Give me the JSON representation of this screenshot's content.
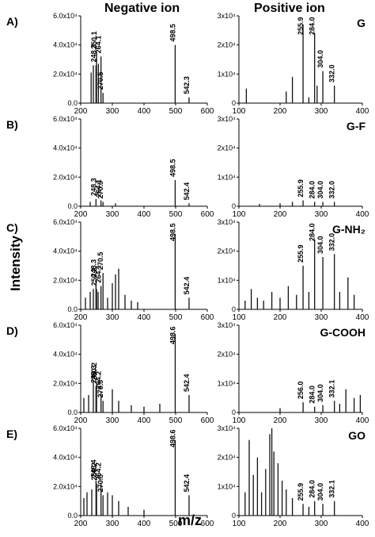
{
  "headers": {
    "negative": "Negative ion",
    "positive": "Positive ion"
  },
  "ylabel": "Intensity",
  "xlabel": "m/z",
  "chart_data": [
    {
      "panel": "A",
      "sample": "G",
      "side": "negative",
      "type": "bar",
      "xlim": [
        200,
        600
      ],
      "ylim": [
        0,
        60000
      ],
      "yticks": [
        "0.0",
        "2.0x10⁴",
        "4.0x10⁴",
        "6.0x10⁴"
      ],
      "xticks": [
        "200",
        "300",
        "400",
        "500",
        "600"
      ],
      "peaks": [
        [
          233,
          21000
        ],
        [
          240,
          26000
        ],
        [
          248.3,
          26000
        ],
        [
          250.1,
          35000
        ],
        [
          256,
          27000
        ],
        [
          264.1,
          32000
        ],
        [
          270.5,
          7000
        ],
        [
          498.5,
          40000
        ],
        [
          542.3,
          4000
        ]
      ],
      "annotations": [
        {
          "x": 248.3,
          "text": "248.3"
        },
        {
          "x": 250.1,
          "text": "250.1"
        },
        {
          "x": 264.1,
          "text": "264.1"
        },
        {
          "x": 270.5,
          "text": "270.5"
        },
        {
          "x": 498.5,
          "text": "498.5"
        },
        {
          "x": 542.3,
          "text": "542.3"
        }
      ]
    },
    {
      "panel": "A",
      "sample": "G",
      "side": "positive",
      "type": "bar",
      "xlim": [
        100,
        400
      ],
      "ylim": [
        0,
        30000
      ],
      "yticks": [
        "0",
        "1x10⁴",
        "2x10⁴",
        "3x10⁴"
      ],
      "xticks": [
        "100",
        "200",
        "300",
        "400"
      ],
      "peaks": [
        [
          118,
          5000
        ],
        [
          215,
          4000
        ],
        [
          230,
          9000
        ],
        [
          255.9,
          27000
        ],
        [
          270,
          2000
        ],
        [
          284,
          24000
        ],
        [
          290,
          6000
        ],
        [
          304,
          11000
        ],
        [
          332,
          6000
        ]
      ],
      "annotations": [
        {
          "x": 255.9,
          "text": "255.9"
        },
        {
          "x": 284.0,
          "text": "284.0"
        },
        {
          "x": 304.0,
          "text": "304.0"
        },
        {
          "x": 332.0,
          "text": "332.0"
        }
      ]
    },
    {
      "panel": "B",
      "sample": "G-F",
      "side": "negative",
      "type": "bar",
      "xlim": [
        200,
        600
      ],
      "ylim": [
        0,
        60000
      ],
      "yticks": [
        "0.0",
        "2.0x10⁴",
        "4.0x10⁴",
        "6.0x10⁴"
      ],
      "xticks": [
        "200",
        "300",
        "400",
        "500",
        "600"
      ],
      "peaks": [
        [
          230,
          3000
        ],
        [
          248.3,
          5000
        ],
        [
          264.1,
          4000
        ],
        [
          270.5,
          3000
        ],
        [
          310,
          2000
        ],
        [
          498.5,
          18000
        ],
        [
          542.4,
          2000
        ]
      ],
      "annotations": [
        {
          "x": 248.3,
          "text": "248.3"
        },
        {
          "x": 264.1,
          "text": "264.1"
        },
        {
          "x": 270.5,
          "text": "270.5"
        },
        {
          "x": 498.5,
          "text": "498.5"
        },
        {
          "x": 542.4,
          "text": "542.4"
        }
      ]
    },
    {
      "panel": "B",
      "sample": "G-F",
      "side": "positive",
      "type": "bar",
      "xlim": [
        100,
        400
      ],
      "ylim": [
        0,
        30000
      ],
      "yticks": [
        "0",
        "1x10⁴",
        "2x10⁴",
        "3x10⁴"
      ],
      "xticks": [
        "100",
        "200",
        "300",
        "400"
      ],
      "peaks": [
        [
          150,
          800
        ],
        [
          200,
          1000
        ],
        [
          230,
          1500
        ],
        [
          255.9,
          2000
        ],
        [
          284,
          1500
        ],
        [
          304,
          1500
        ],
        [
          332,
          1500
        ]
      ],
      "annotations": [
        {
          "x": 255.9,
          "text": "255.9"
        },
        {
          "x": 284.0,
          "text": "284.0"
        },
        {
          "x": 304.0,
          "text": "304.0"
        },
        {
          "x": 332.0,
          "text": "332.0"
        }
      ]
    },
    {
      "panel": "C",
      "sample": "G-NH₂",
      "side": "negative",
      "type": "bar",
      "xlim": [
        200,
        600
      ],
      "ylim": [
        0,
        60000
      ],
      "yticks": [
        "0.0",
        "2.0x10⁴",
        "4.0x10⁴",
        "6.0x10⁴"
      ],
      "xticks": [
        "200",
        "300",
        "400",
        "500",
        "600"
      ],
      "peaks": [
        [
          215,
          8000
        ],
        [
          230,
          12000
        ],
        [
          240,
          14000
        ],
        [
          248.3,
          20000
        ],
        [
          250.2,
          14000
        ],
        [
          255,
          12000
        ],
        [
          264.1,
          16000
        ],
        [
          270.5,
          25000
        ],
        [
          285,
          8000
        ],
        [
          300,
          18000
        ],
        [
          310,
          24000
        ],
        [
          320,
          28000
        ],
        [
          340,
          10000
        ],
        [
          360,
          6000
        ],
        [
          380,
          5000
        ],
        [
          498.5,
          52000
        ],
        [
          542.4,
          8000
        ]
      ],
      "annotations": [
        {
          "x": 250.2,
          "text": "250.2"
        },
        {
          "x": 248.3,
          "text": "248.3"
        },
        {
          "x": 264.1,
          "text": "264.1"
        },
        {
          "x": 270.5,
          "text": "270.5"
        },
        {
          "x": 498.5,
          "text": "498.5"
        },
        {
          "x": 542.4,
          "text": "542.4"
        }
      ]
    },
    {
      "panel": "C",
      "sample": "G-NH₂",
      "side": "positive",
      "type": "bar",
      "xlim": [
        100,
        400
      ],
      "ylim": [
        0,
        30000
      ],
      "yticks": [
        "0",
        "1x10⁴",
        "2x10⁴",
        "3x10⁴"
      ],
      "xticks": [
        "100",
        "200",
        "300",
        "400"
      ],
      "peaks": [
        [
          115,
          3000
        ],
        [
          130,
          7000
        ],
        [
          145,
          4000
        ],
        [
          160,
          3000
        ],
        [
          180,
          6000
        ],
        [
          200,
          4000
        ],
        [
          220,
          8000
        ],
        [
          240,
          5000
        ],
        [
          255.9,
          15000
        ],
        [
          270,
          6000
        ],
        [
          284,
          24000
        ],
        [
          304,
          18000
        ],
        [
          332,
          19000
        ],
        [
          345,
          6000
        ],
        [
          365,
          11000
        ],
        [
          380,
          5000
        ]
      ],
      "annotations": [
        {
          "x": 255.9,
          "text": "255.9"
        },
        {
          "x": 284.0,
          "text": "284.0"
        },
        {
          "x": 304.0,
          "text": "304.0"
        },
        {
          "x": 332.0,
          "text": "332.0"
        }
      ]
    },
    {
      "panel": "D",
      "sample": "G-COOH",
      "side": "negative",
      "type": "bar",
      "xlim": [
        200,
        600
      ],
      "ylim": [
        0,
        60000
      ],
      "yticks": [
        "0.0",
        "2.0x10⁴",
        "4.0x10⁴",
        "6.0x10⁴"
      ],
      "xticks": [
        "200",
        "300",
        "400",
        "500",
        "600"
      ],
      "peaks": [
        [
          210,
          10000
        ],
        [
          225,
          12000
        ],
        [
          240,
          22000
        ],
        [
          248.3,
          18000
        ],
        [
          250.2,
          20000
        ],
        [
          264.2,
          14000
        ],
        [
          270.5,
          8000
        ],
        [
          300,
          16000
        ],
        [
          320,
          8000
        ],
        [
          360,
          5000
        ],
        [
          400,
          4000
        ],
        [
          450,
          6000
        ],
        [
          498.6,
          54000
        ],
        [
          542.4,
          12000
        ]
      ],
      "annotations": [
        {
          "x": 250.2,
          "text": "250.2"
        },
        {
          "x": 248.3,
          "text": "248.3"
        },
        {
          "x": 264.2,
          "text": "264.2"
        },
        {
          "x": 270.5,
          "text": "270.5"
        },
        {
          "x": 498.6,
          "text": "498.6"
        },
        {
          "x": 542.4,
          "text": "542.4"
        }
      ]
    },
    {
      "panel": "D",
      "sample": "G-COOH",
      "side": "positive",
      "type": "bar",
      "xlim": [
        100,
        400
      ],
      "ylim": [
        0,
        30000
      ],
      "yticks": [
        "0",
        "1x10⁴",
        "2x10⁴",
        "3x10⁴"
      ],
      "xticks": [
        "100",
        "200",
        "300",
        "400"
      ],
      "peaks": [
        [
          200,
          1500
        ],
        [
          256,
          3500
        ],
        [
          284,
          2000
        ],
        [
          304,
          2500
        ],
        [
          332.1,
          4000
        ],
        [
          345,
          3000
        ],
        [
          360,
          8000
        ],
        [
          380,
          5000
        ],
        [
          395,
          6000
        ]
      ],
      "annotations": [
        {
          "x": 256.0,
          "text": "256.0"
        },
        {
          "x": 284.0,
          "text": "284.0"
        },
        {
          "x": 304.0,
          "text": "304.0"
        },
        {
          "x": 332.1,
          "text": "332.1"
        }
      ]
    },
    {
      "panel": "E",
      "sample": "GO",
      "side": "negative",
      "type": "bar",
      "xlim": [
        200,
        600
      ],
      "ylim": [
        0,
        60000
      ],
      "yticks": [
        "0.0",
        "2.0x10⁴",
        "4.0x10⁴",
        "6.0x10⁴"
      ],
      "xticks": [
        "200",
        "300",
        "400",
        "500",
        "600"
      ],
      "peaks": [
        [
          210,
          12000
        ],
        [
          220,
          16000
        ],
        [
          235,
          18000
        ],
        [
          248.4,
          24000
        ],
        [
          250.2,
          22000
        ],
        [
          264.2,
          22000
        ],
        [
          270.5,
          14000
        ],
        [
          285,
          16000
        ],
        [
          300,
          14000
        ],
        [
          320,
          10000
        ],
        [
          350,
          6000
        ],
        [
          400,
          4000
        ],
        [
          498.6,
          52000
        ],
        [
          542.4,
          14000
        ]
      ],
      "annotations": [
        {
          "x": 250.2,
          "text": "250.2"
        },
        {
          "x": 248.4,
          "text": "248.4"
        },
        {
          "x": 264.2,
          "text": "264.2"
        },
        {
          "x": 270.5,
          "text": "270.5"
        },
        {
          "x": 498.6,
          "text": "498.6"
        },
        {
          "x": 542.4,
          "text": "542.4"
        }
      ]
    },
    {
      "panel": "E",
      "sample": "GO",
      "side": "positive",
      "type": "bar",
      "xlim": [
        100,
        400
      ],
      "ylim": [
        0,
        30000
      ],
      "yticks": [
        "0",
        "1x10⁴",
        "2x10⁴",
        "3x10⁴"
      ],
      "xticks": [
        "100",
        "200",
        "300",
        "400"
      ],
      "peaks": [
        [
          115,
          8000
        ],
        [
          125,
          26000
        ],
        [
          135,
          14000
        ],
        [
          145,
          20000
        ],
        [
          155,
          8000
        ],
        [
          165,
          16000
        ],
        [
          175,
          28000
        ],
        [
          180,
          30000
        ],
        [
          185,
          22000
        ],
        [
          195,
          18000
        ],
        [
          205,
          12000
        ],
        [
          215,
          9000
        ],
        [
          230,
          6000
        ],
        [
          255.9,
          4000
        ],
        [
          270,
          3000
        ],
        [
          284,
          5000
        ],
        [
          304,
          4000
        ],
        [
          332.1,
          5000
        ]
      ],
      "annotations": [
        {
          "x": 255.9,
          "text": "255.9"
        },
        {
          "x": 284.0,
          "text": "284.0"
        },
        {
          "x": 304.0,
          "text": "304.0"
        },
        {
          "x": 332.1,
          "text": "332.1"
        }
      ]
    }
  ]
}
